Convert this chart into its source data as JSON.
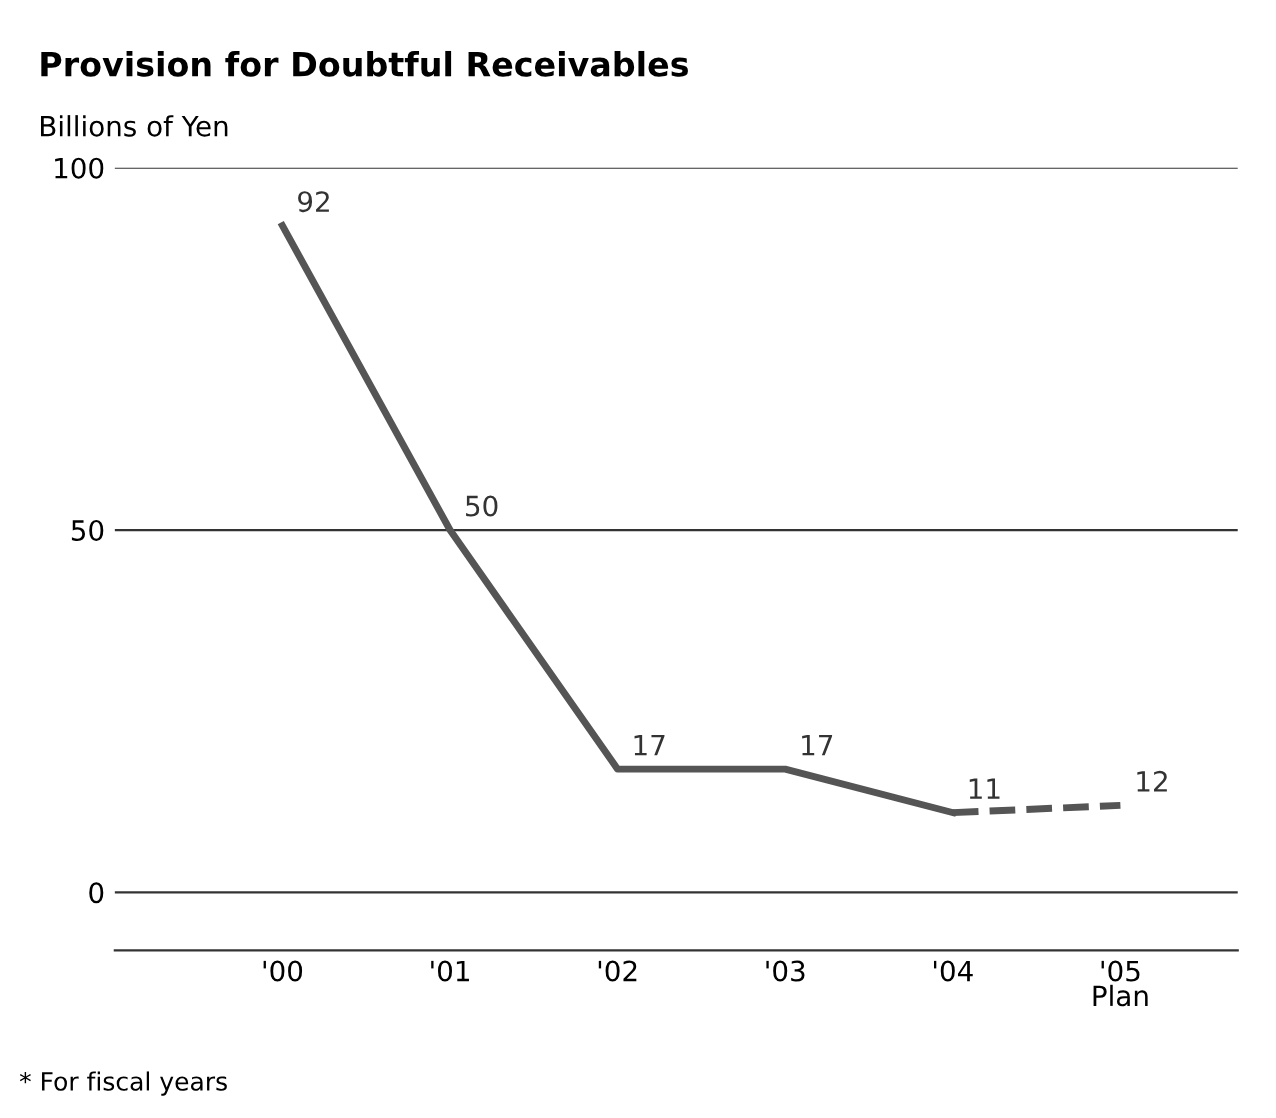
{
  "chart_data": {
    "type": "line",
    "title": "Provision for Doubtful Receivables",
    "ylabel": "Billions of Yen",
    "categories": [
      "'00",
      "'01",
      "'02",
      "'03",
      "'04",
      "'05\nPlan"
    ],
    "series": [
      {
        "color": "#555555",
        "line_style": "solid",
        "values": [
          92,
          50,
          17,
          17,
          11,
          null
        ],
        "value_labels": [
          "92",
          "50",
          "17",
          "17",
          "11",
          null
        ]
      },
      {
        "color": "#555555",
        "line_style": "dashed",
        "values": [
          null,
          null,
          null,
          null,
          11,
          12
        ],
        "value_labels": [
          null,
          null,
          null,
          null,
          null,
          "12"
        ]
      }
    ],
    "ylim": [
      -8,
      100
    ],
    "yticks": [
      0,
      50,
      100
    ],
    "grid": "y",
    "marker": "none",
    "legend": false,
    "annotations": [
      "* For fiscal years"
    ]
  }
}
